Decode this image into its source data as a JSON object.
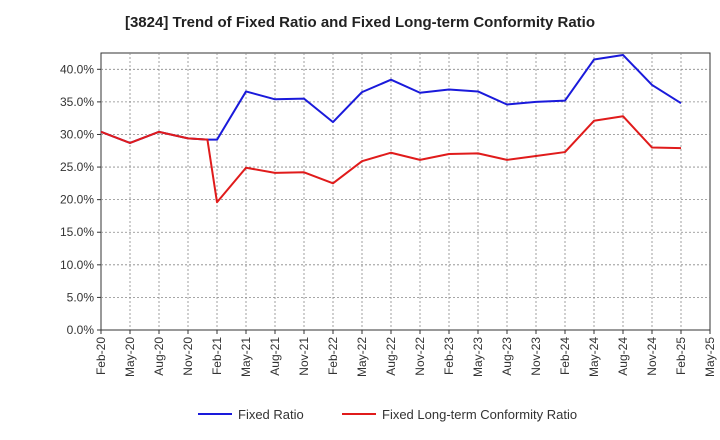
{
  "chart_data": {
    "type": "line",
    "title": "[3824]  Trend of Fixed Ratio and Fixed Long-term Conformity Ratio",
    "xlabel": "",
    "ylabel": "",
    "ylim": [
      0,
      42.5
    ],
    "yticks": [
      0,
      5,
      10,
      15,
      20,
      25,
      30,
      35,
      40
    ],
    "ytick_labels": [
      "0.0%",
      "5.0%",
      "10.0%",
      "15.0%",
      "20.0%",
      "25.0%",
      "30.0%",
      "35.0%",
      "40.0%"
    ],
    "x_tick_labels": [
      "Feb-20",
      "May-20",
      "Aug-20",
      "Nov-20",
      "Feb-21",
      "May-21",
      "Aug-21",
      "Nov-21",
      "Feb-22",
      "May-22",
      "Aug-22",
      "Nov-22",
      "Feb-23",
      "May-23",
      "Aug-23",
      "Nov-23",
      "Feb-24",
      "May-24",
      "Aug-24",
      "Nov-24",
      "Feb-25",
      "May-25"
    ],
    "x_points": [
      "Feb-20",
      "May-20",
      "Aug-20",
      "Nov-20",
      "Jan-21",
      "Feb-21",
      "May-21",
      "Aug-21",
      "Nov-21",
      "Feb-22",
      "May-22",
      "Aug-22",
      "Nov-22",
      "Feb-23",
      "May-23",
      "Aug-23",
      "Nov-23",
      "Feb-24",
      "May-24",
      "Aug-24",
      "Nov-24",
      "Feb-25"
    ],
    "x_positions": [
      0,
      1,
      2,
      3,
      3.67,
      4,
      5,
      6,
      7,
      8,
      9,
      10,
      11,
      12,
      13,
      14,
      15,
      16,
      17,
      18,
      19,
      20
    ],
    "grid": true,
    "legend_position": "bottom",
    "series": [
      {
        "name": "Fixed Ratio",
        "color": "#1a1adb",
        "values": [
          30.4,
          28.7,
          30.4,
          29.4,
          29.2,
          29.2,
          36.6,
          35.4,
          35.5,
          31.9,
          36.5,
          38.4,
          36.4,
          36.9,
          36.6,
          34.6,
          35.0,
          35.2,
          41.5,
          42.2,
          37.6,
          34.8
        ]
      },
      {
        "name": "Fixed Long-term Conformity Ratio",
        "color": "#e01b1b",
        "values": [
          30.4,
          28.7,
          30.4,
          29.4,
          29.2,
          19.6,
          24.9,
          24.1,
          24.2,
          22.5,
          25.9,
          27.2,
          26.1,
          27.0,
          27.1,
          26.1,
          26.7,
          27.3,
          32.1,
          32.8,
          28.0,
          27.9
        ]
      }
    ]
  }
}
